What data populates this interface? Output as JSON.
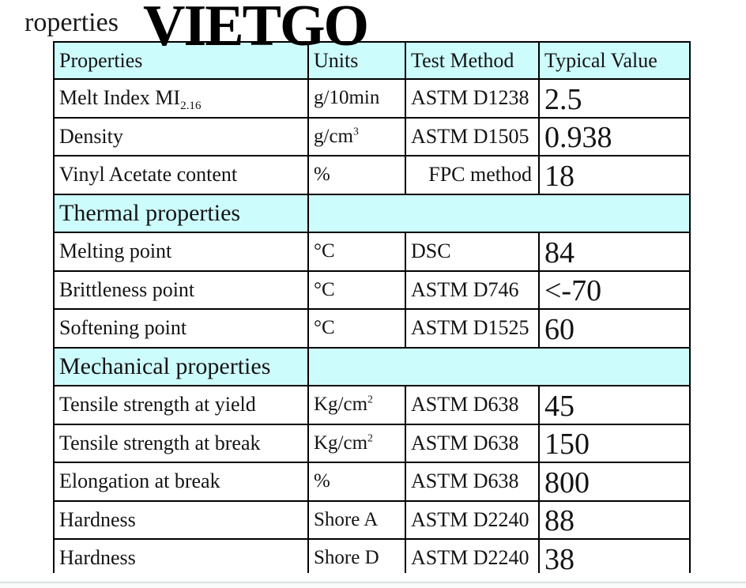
{
  "page": {
    "caption_fragment": "roperties",
    "watermark": "VIETGO"
  },
  "colors": {
    "section_bg": "#cdfcfc",
    "border": "#000000",
    "page_edge_line": "#dde1e3"
  },
  "table": {
    "columns": [
      "Properties",
      "Units",
      "Test Method",
      "Typical Value"
    ],
    "rows": [
      {
        "type": "data",
        "property": [
          {
            "text": "Melt Index MI"
          },
          {
            "sub": "2.16"
          }
        ],
        "units": [
          {
            "text": "g/10min"
          }
        ],
        "test_method": "ASTM D1238",
        "value": "2.5"
      },
      {
        "type": "data",
        "property": [
          {
            "text": "Density"
          }
        ],
        "units": [
          {
            "text": "g/cm"
          },
          {
            "sup": "3"
          }
        ],
        "test_method": "ASTM D1505",
        "value": "0.938"
      },
      {
        "type": "data",
        "property": [
          {
            "text": "Vinyl Acetate content"
          }
        ],
        "units": [
          {
            "text": "%"
          }
        ],
        "test_method": "FPC method",
        "test_align": "right",
        "value": "18"
      },
      {
        "type": "section",
        "label": "Thermal properties"
      },
      {
        "type": "data",
        "property": [
          {
            "text": "Melting point"
          }
        ],
        "units": [
          {
            "text": "°C"
          }
        ],
        "test_method": "DSC",
        "value": "84"
      },
      {
        "type": "data",
        "property": [
          {
            "text": "Brittleness point"
          }
        ],
        "units": [
          {
            "text": "°C"
          }
        ],
        "test_method": "ASTM D746",
        "value": "<-70"
      },
      {
        "type": "data",
        "property": [
          {
            "text": "Softening point"
          }
        ],
        "units": [
          {
            "text": "°C"
          }
        ],
        "test_method": "ASTM D1525",
        "value": "60"
      },
      {
        "type": "section",
        "label": "Mechanical properties"
      },
      {
        "type": "data",
        "property": [
          {
            "text": "Tensile strength at yield"
          }
        ],
        "units": [
          {
            "text": "Kg/cm"
          },
          {
            "sup": "2"
          }
        ],
        "test_method": "ASTM D638",
        "value": "45"
      },
      {
        "type": "data",
        "property": [
          {
            "text": "Tensile strength at break"
          }
        ],
        "units": [
          {
            "text": "Kg/cm"
          },
          {
            "sup": "2"
          }
        ],
        "test_method": "ASTM D638",
        "value": "150"
      },
      {
        "type": "data",
        "property": [
          {
            "text": "Elongation at break"
          }
        ],
        "units": [
          {
            "text": "%"
          }
        ],
        "test_method": "ASTM D638",
        "value": "800"
      },
      {
        "type": "data",
        "property": [
          {
            "text": "Hardness"
          }
        ],
        "units": [
          {
            "text": "Shore A"
          }
        ],
        "test_method": "ASTM D2240",
        "value": "88"
      },
      {
        "type": "data",
        "property": [
          {
            "text": "Hardness"
          }
        ],
        "units": [
          {
            "text": "Shore D"
          }
        ],
        "test_method": "ASTM D2240",
        "value": "38"
      }
    ]
  }
}
